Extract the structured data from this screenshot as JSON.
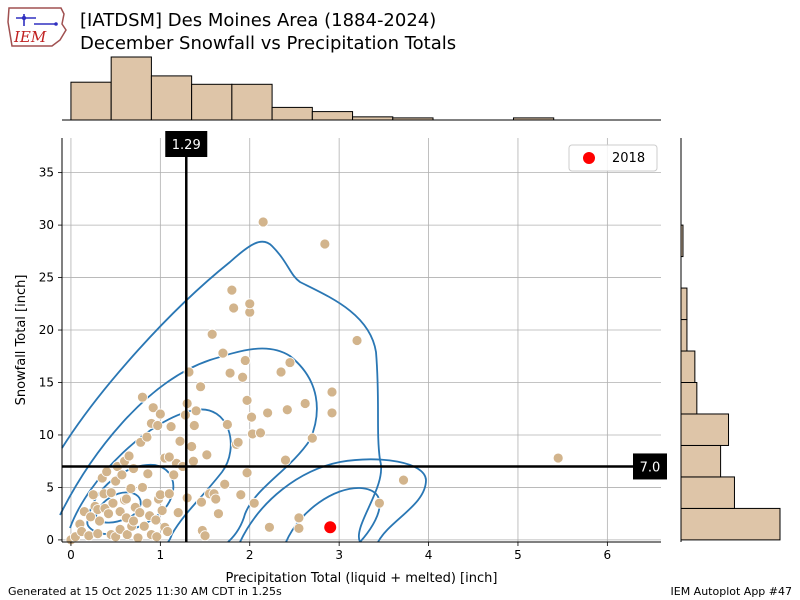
{
  "header": {
    "title_line1": "[IATDSM] Des Moines Area (1884-2024)",
    "title_line2": "December Snowfall vs Precipitation Totals",
    "logo_text": "IEM"
  },
  "footer": {
    "generated": "Generated at 15 Oct 2025 11:30 AM CDT in 1.25s",
    "app": "IEM Autoplot App #47"
  },
  "colors": {
    "scatter": "#d2b48c",
    "histogram": "#dec5a8",
    "kde": "#2a77b4",
    "highlight": "#ff0000",
    "grid": "#b0b0b0"
  },
  "chart_data": {
    "type": "scatter",
    "xlabel": "Precipitation Total (liquid + melted) [inch]",
    "ylabel": "Snowfall Total [inch]",
    "xlim": [
      -0.1,
      6.6
    ],
    "ylim": [
      -0.2,
      38.3
    ],
    "xticks": [
      0,
      1,
      2,
      3,
      4,
      5,
      6
    ],
    "yticks": [
      0,
      5,
      10,
      15,
      20,
      25,
      30,
      35
    ],
    "grid": true,
    "mean_lines": {
      "x": 1.29,
      "x_label": "1.29",
      "y": 7.0,
      "y_label": "7.0"
    },
    "legend": {
      "position": "top-right",
      "label": "2018"
    },
    "highlight_point": {
      "label": "2018",
      "x": 2.9,
      "y": 1.2
    },
    "points": [
      [
        0.0,
        0.0
      ],
      [
        0.05,
        0.3
      ],
      [
        0.1,
        1.5
      ],
      [
        0.12,
        0.8
      ],
      [
        0.15,
        2.7
      ],
      [
        0.2,
        0.4
      ],
      [
        0.22,
        2.2
      ],
      [
        0.25,
        4.3
      ],
      [
        0.27,
        3.2
      ],
      [
        0.3,
        0.6
      ],
      [
        0.3,
        2.9
      ],
      [
        0.32,
        1.8
      ],
      [
        0.35,
        5.9
      ],
      [
        0.37,
        4.4
      ],
      [
        0.38,
        3.0
      ],
      [
        0.4,
        6.5
      ],
      [
        0.42,
        2.5
      ],
      [
        0.45,
        0.5
      ],
      [
        0.45,
        4.5
      ],
      [
        0.47,
        3.5
      ],
      [
        0.5,
        0.3
      ],
      [
        0.5,
        5.6
      ],
      [
        0.52,
        7.0
      ],
      [
        0.55,
        1.0
      ],
      [
        0.55,
        2.7
      ],
      [
        0.57,
        6.2
      ],
      [
        0.6,
        7.5
      ],
      [
        0.6,
        3.8
      ],
      [
        0.62,
        2.1
      ],
      [
        0.63,
        0.5
      ],
      [
        0.65,
        8.0
      ],
      [
        0.67,
        4.9
      ],
      [
        0.68,
        1.3
      ],
      [
        0.7,
        1.8
      ],
      [
        0.7,
        6.8
      ],
      [
        0.72,
        3.1
      ],
      [
        0.75,
        0.2
      ],
      [
        0.77,
        2.6
      ],
      [
        0.78,
        9.3
      ],
      [
        0.8,
        5.0
      ],
      [
        0.8,
        13.6
      ],
      [
        0.82,
        1.3
      ],
      [
        0.85,
        3.5
      ],
      [
        0.86,
        6.3
      ],
      [
        0.88,
        2.3
      ],
      [
        0.9,
        0.5
      ],
      [
        0.9,
        11.1
      ],
      [
        0.92,
        12.6
      ],
      [
        0.95,
        1.9
      ],
      [
        0.97,
        10.9
      ],
      [
        0.98,
        3.9
      ],
      [
        1.0,
        12.0
      ],
      [
        1.0,
        4.3
      ],
      [
        1.02,
        2.8
      ],
      [
        1.05,
        7.8
      ],
      [
        1.05,
        1.2
      ],
      [
        1.08,
        0.8
      ],
      [
        1.1,
        4.4
      ],
      [
        1.12,
        10.8
      ],
      [
        1.15,
        6.2
      ],
      [
        1.18,
        7.3
      ],
      [
        1.2,
        2.6
      ],
      [
        1.22,
        9.4
      ],
      [
        1.25,
        7.0
      ],
      [
        1.28,
        11.9
      ],
      [
        1.3,
        13.0
      ],
      [
        1.32,
        16.0
      ],
      [
        1.35,
        8.9
      ],
      [
        1.37,
        7.5
      ],
      [
        1.38,
        10.9
      ],
      [
        1.4,
        12.3
      ],
      [
        1.45,
        14.6
      ],
      [
        1.47,
        0.9
      ],
      [
        1.5,
        0.4
      ],
      [
        1.52,
        8.1
      ],
      [
        1.55,
        4.4
      ],
      [
        1.58,
        19.6
      ],
      [
        1.6,
        4.4
      ],
      [
        1.62,
        3.9
      ],
      [
        1.65,
        2.5
      ],
      [
        1.7,
        17.8
      ],
      [
        1.72,
        5.3
      ],
      [
        1.75,
        11.0
      ],
      [
        1.78,
        15.9
      ],
      [
        1.8,
        23.8
      ],
      [
        1.82,
        22.1
      ],
      [
        1.85,
        9.1
      ],
      [
        1.87,
        9.3
      ],
      [
        1.9,
        4.3
      ],
      [
        1.92,
        15.5
      ],
      [
        1.95,
        17.1
      ],
      [
        1.97,
        13.3
      ],
      [
        2.0,
        21.7
      ],
      [
        2.02,
        11.7
      ],
      [
        2.03,
        10.1
      ],
      [
        2.05,
        3.5
      ],
      [
        2.0,
        22.5
      ],
      [
        2.12,
        10.2
      ],
      [
        2.15,
        30.3
      ],
      [
        2.2,
        12.1
      ],
      [
        2.22,
        1.2
      ],
      [
        2.35,
        16.0
      ],
      [
        2.4,
        7.6
      ],
      [
        2.42,
        12.4
      ],
      [
        2.45,
        16.9
      ],
      [
        2.55,
        2.1
      ],
      [
        2.55,
        1.1
      ],
      [
        2.62,
        13.0
      ],
      [
        2.7,
        9.7
      ],
      [
        2.84,
        28.2
      ],
      [
        2.92,
        14.1
      ],
      [
        2.92,
        12.1
      ],
      [
        3.2,
        19.0
      ],
      [
        3.45,
        3.5
      ],
      [
        3.72,
        5.7
      ],
      [
        5.45,
        7.8
      ],
      [
        1.1,
        7.9
      ],
      [
        0.85,
        9.8
      ],
      [
        1.97,
        6.4
      ],
      [
        1.3,
        4.0
      ],
      [
        0.62,
        3.9
      ],
      [
        1.46,
        3.6
      ],
      [
        0.96,
        0.3
      ]
    ],
    "top_histogram": {
      "bin_edges": [
        0.0,
        0.45,
        0.9,
        1.35,
        1.8,
        2.25,
        2.7,
        3.15,
        3.6,
        4.05,
        4.5,
        4.95,
        5.4
      ],
      "counts": [
        18,
        30,
        21,
        17,
        17,
        6,
        4,
        1.5,
        1,
        0,
        0,
        1
      ]
    },
    "right_histogram": {
      "bin_edges": [
        0,
        3,
        6,
        9,
        12,
        15,
        18,
        21,
        24,
        27,
        30,
        33
      ],
      "counts": [
        50,
        27,
        20,
        24,
        8,
        7,
        3,
        3,
        0,
        1,
        0
      ]
    }
  }
}
